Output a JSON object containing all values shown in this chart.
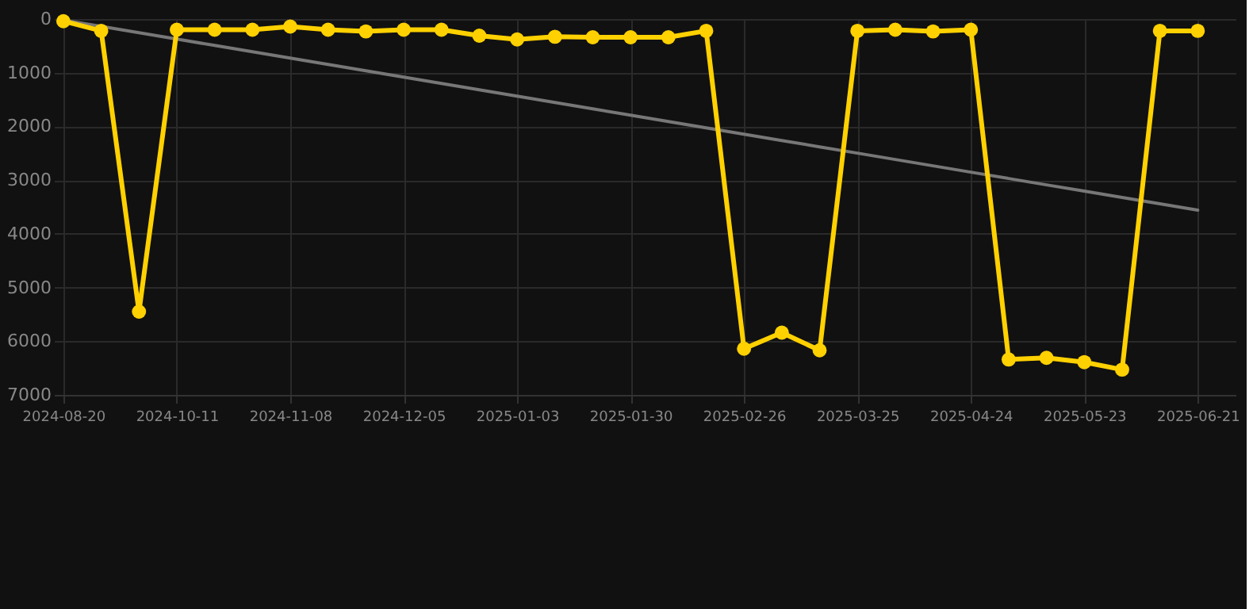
{
  "chart_data": {
    "type": "line",
    "categories": [
      "2024-08-20",
      null,
      null,
      "2024-10-11",
      null,
      null,
      "2024-11-08",
      null,
      null,
      "2024-12-05",
      null,
      null,
      "2025-01-03",
      null,
      null,
      "2025-01-30",
      null,
      null,
      "2025-02-26",
      null,
      null,
      "2025-03-25",
      null,
      null,
      "2025-04-24",
      null,
      null,
      "2025-05-23",
      null,
      null,
      "2025-06-21"
    ],
    "series": [
      {
        "type": "line",
        "color": "#777777",
        "marker": "none",
        "line_style": "solid",
        "values": [
          20,
          138,
          256,
          374,
          492,
          610,
          728,
          846,
          964,
          1082,
          1200,
          1318,
          1436,
          1554,
          1672,
          1790,
          1908,
          2026,
          2144,
          2262,
          2380,
          2498,
          2616,
          2734,
          2852,
          2970,
          3088,
          3206,
          3324,
          3442,
          3560
        ]
      },
      {
        "color": "#ffd100",
        "marker": "circle",
        "line_style": "solid",
        "values": [
          40,
          220,
          5450,
          200,
          200,
          200,
          140,
          200,
          230,
          200,
          200,
          310,
          380,
          330,
          340,
          340,
          340,
          220,
          6140,
          5840,
          6170,
          220,
          200,
          230,
          200,
          6340,
          6310,
          6390,
          6530,
          220,
          220
        ]
      }
    ],
    "ylim": [
      7000,
      0
    ],
    "yticks": [
      0,
      1000,
      2000,
      3000,
      4000,
      5000,
      6000,
      7000
    ],
    "grid": true
  }
}
